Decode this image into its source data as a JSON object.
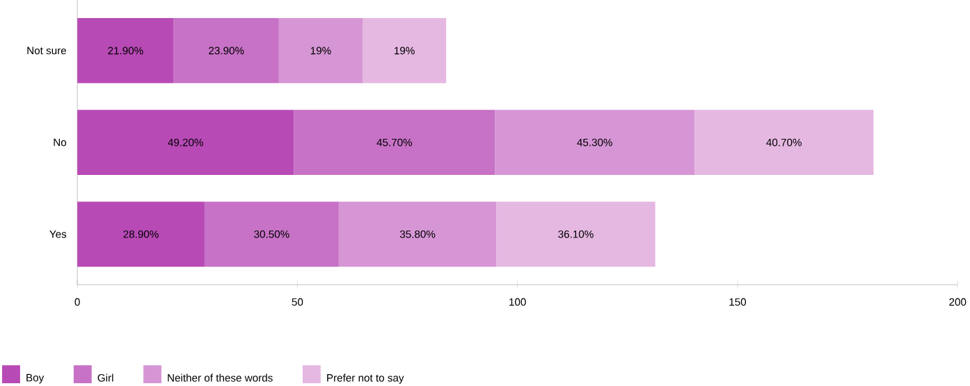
{
  "chart_data": {
    "type": "bar",
    "orientation": "horizontal",
    "stacked": true,
    "categories": [
      "Not sure",
      "No",
      "Yes"
    ],
    "series": [
      {
        "name": "Boy",
        "color": "#b84ab6",
        "values": [
          21.9,
          49.2,
          28.9
        ],
        "value_labels": [
          "21.90%",
          "49.20%",
          "28.90%"
        ]
      },
      {
        "name": "Girl",
        "color": "#c772c6",
        "values": [
          23.9,
          45.7,
          30.5
        ],
        "value_labels": [
          "23.90%",
          "45.70%",
          "30.50%"
        ]
      },
      {
        "name": "Neither of these words",
        "color": "#d696d5",
        "values": [
          19,
          45.3,
          35.8
        ],
        "value_labels": [
          "19%",
          "45.30%",
          "35.80%"
        ]
      },
      {
        "name": "Prefer not to say",
        "color": "#e5b8e2",
        "values": [
          19,
          40.7,
          36.1
        ],
        "value_labels": [
          "19%",
          "40.70%",
          "36.10%"
        ]
      }
    ],
    "xlim": [
      0,
      200
    ],
    "xticks": [
      0,
      50,
      100,
      150,
      200
    ],
    "legend": "bottom left"
  }
}
